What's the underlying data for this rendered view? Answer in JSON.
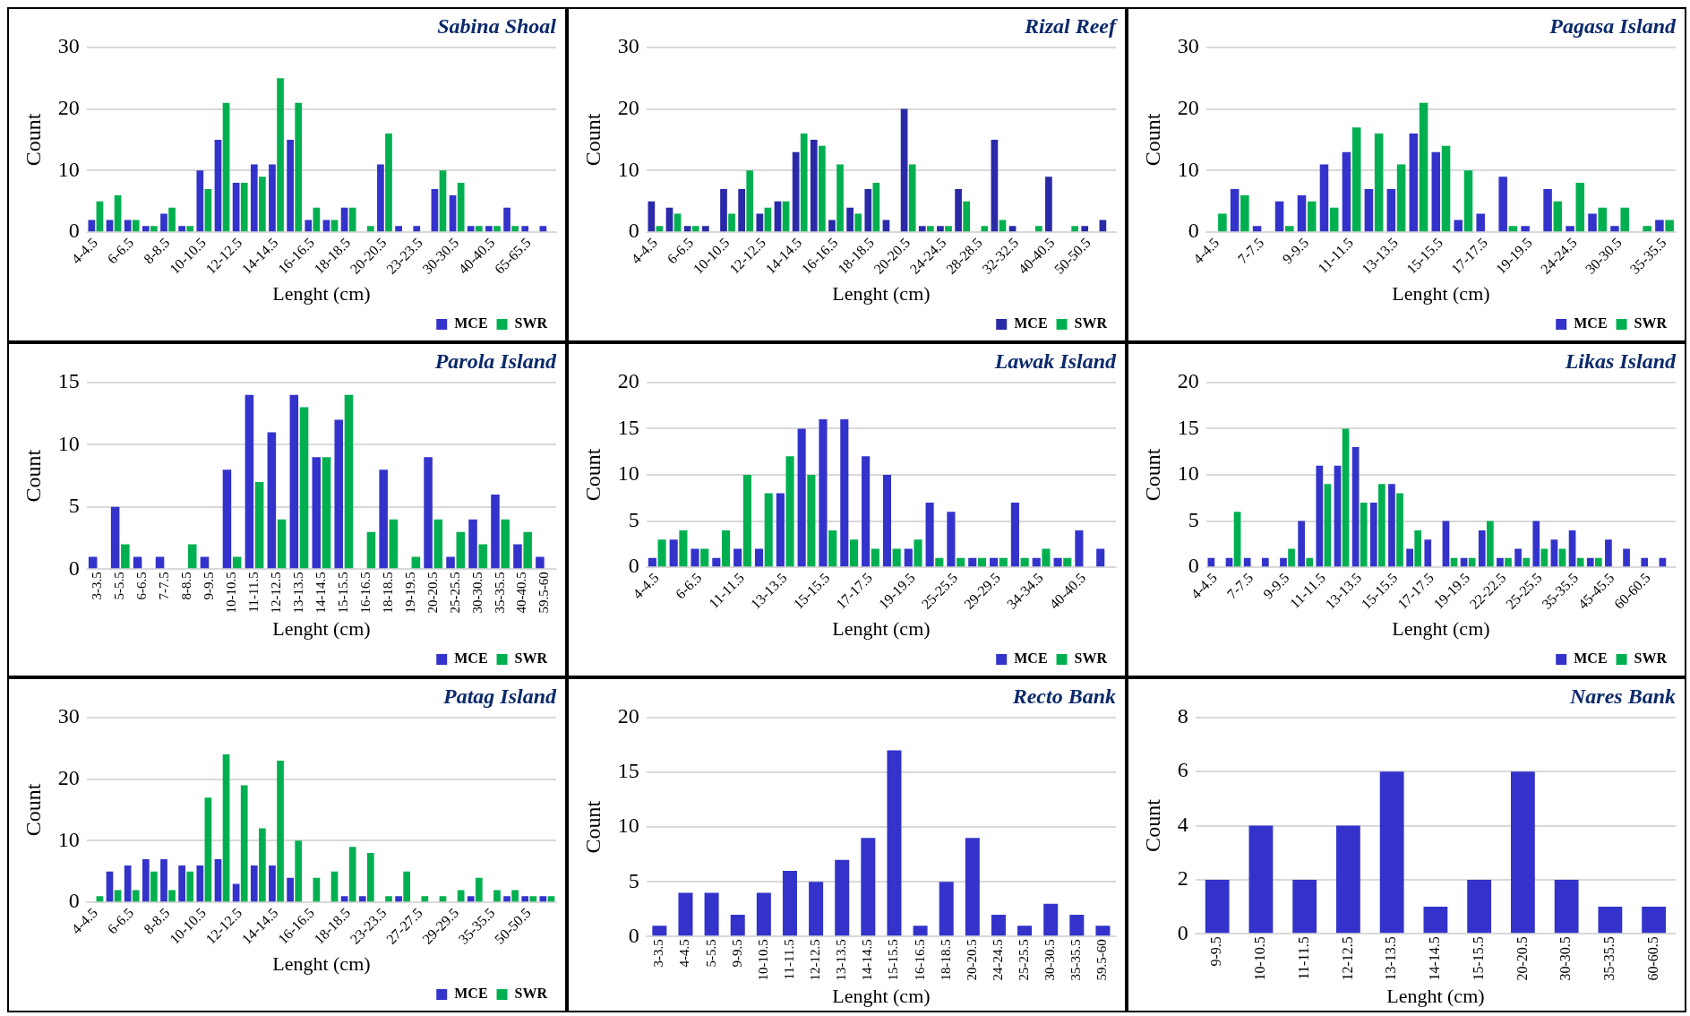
{
  "chart_data": [
    {
      "type": "bar",
      "title": "Sabina Shoal",
      "xlabel": "Lenght (cm)",
      "ylabel": "Count",
      "categories": [
        "4-4.5",
        null,
        "6-6.5",
        null,
        "8-8.5",
        null,
        "10-10.5",
        null,
        "12-12.5",
        null,
        "14-14.5",
        null,
        "16-16.5",
        null,
        "18-18.5",
        null,
        "20-20.5",
        null,
        "23-23.5",
        null,
        "30-30.5",
        null,
        "40-40.5",
        null,
        "65-65.5",
        null
      ],
      "series": [
        {
          "name": "MCE",
          "color": "#3333cc",
          "values": [
            2,
            2,
            2,
            1,
            3,
            1,
            10,
            15,
            8,
            11,
            11,
            15,
            2,
            2,
            4,
            null,
            11,
            1,
            1,
            7,
            6,
            1,
            1,
            4,
            1,
            1
          ]
        },
        {
          "name": "SWR",
          "color": "#00b050",
          "values": [
            5,
            6,
            2,
            1,
            4,
            1,
            7,
            21,
            8,
            9,
            25,
            21,
            4,
            2,
            4,
            1,
            16,
            null,
            null,
            10,
            8,
            1,
            1,
            1,
            null,
            null
          ]
        }
      ],
      "ylim": [
        0,
        30
      ],
      "yticks": [
        0,
        10,
        20,
        30
      ],
      "grid": "y",
      "legend": "bottom right"
    },
    {
      "type": "bar",
      "title": "Rizal Reef",
      "xlabel": "Lenght (cm)",
      "ylabel": "Count",
      "categories": [
        "4-4.5",
        null,
        "6-6.5",
        null,
        "10-10.5",
        null,
        "12-12.5",
        null,
        "14-14.5",
        null,
        "16-16.5",
        null,
        "18-18.5",
        null,
        "20-20.5",
        null,
        "24-24.5",
        null,
        "28-28.5",
        null,
        "32-32.5",
        null,
        "40-40.5",
        null,
        "50-50.5",
        null
      ],
      "series": [
        {
          "name": "MCE",
          "color": "#2a2aa8",
          "values": [
            5,
            4,
            1,
            1,
            7,
            7,
            3,
            5,
            13,
            15,
            2,
            4,
            7,
            2,
            20,
            1,
            1,
            7,
            null,
            15,
            1,
            null,
            9,
            null,
            1,
            2
          ]
        },
        {
          "name": "SWR",
          "color": "#00b050",
          "values": [
            1,
            3,
            1,
            null,
            3,
            10,
            4,
            5,
            16,
            14,
            11,
            3,
            8,
            null,
            11,
            1,
            1,
            5,
            1,
            2,
            null,
            1,
            null,
            1,
            null,
            null
          ]
        }
      ],
      "ylim": [
        0,
        30
      ],
      "yticks": [
        0,
        10,
        20,
        30
      ],
      "grid": "y",
      "legend": "bottom right"
    },
    {
      "type": "bar",
      "title": "Pagasa Island",
      "xlabel": "Lenght (cm)",
      "ylabel": "Count",
      "categories": [
        "4-4.5",
        null,
        "7-7.5",
        null,
        "9-9.5",
        null,
        "11-11.5",
        null,
        "13-13.5",
        null,
        "15-15.5",
        null,
        "17-17.5",
        null,
        "19-19.5",
        null,
        "24-24.5",
        null,
        "30-30.5",
        null,
        "35-35.5"
      ],
      "series": [
        {
          "name": "MCE",
          "color": "#3333cc",
          "values": [
            null,
            7,
            1,
            5,
            6,
            11,
            13,
            7,
            7,
            16,
            13,
            2,
            3,
            9,
            1,
            7,
            1,
            3,
            1,
            null,
            2
          ]
        },
        {
          "name": "SWR",
          "color": "#00b050",
          "values": [
            3,
            6,
            null,
            1,
            5,
            4,
            17,
            16,
            11,
            21,
            14,
            10,
            null,
            1,
            null,
            5,
            8,
            4,
            4,
            1,
            2
          ]
        }
      ],
      "ylim": [
        0,
        30
      ],
      "yticks": [
        0,
        10,
        20,
        30
      ],
      "grid": "y",
      "legend": "bottom right"
    },
    {
      "type": "bar",
      "title": "Parola Island",
      "xlabel": "Lenght (cm)",
      "ylabel": "Count",
      "categories": [
        "3-3.5",
        "5-5.5",
        "6-6.5",
        "7-7.5",
        "8-8.5",
        "9-9.5",
        "10-10.5",
        "11-11.5",
        "12-12.5",
        "13-13.5",
        "14-14.5",
        "15-15.5",
        "16-16.5",
        "18-18.5",
        "19-19.5",
        "20-20.5",
        "25-25.5",
        "30-30.5",
        "35-35.5",
        "40-40.5",
        "59.5-60"
      ],
      "series": [
        {
          "name": "MCE",
          "color": "#3333cc",
          "values": [
            1,
            5,
            1,
            1,
            null,
            1,
            8,
            14,
            11,
            14,
            9,
            12,
            null,
            8,
            null,
            9,
            1,
            4,
            6,
            2,
            1
          ]
        },
        {
          "name": "SWR",
          "color": "#00b050",
          "values": [
            null,
            2,
            null,
            null,
            2,
            null,
            1,
            7,
            4,
            13,
            9,
            14,
            3,
            4,
            1,
            4,
            3,
            2,
            4,
            3,
            null
          ]
        }
      ],
      "ylim": [
        0,
        15
      ],
      "yticks": [
        0,
        5,
        10,
        15
      ],
      "grid": "y",
      "legend": "bottom right"
    },
    {
      "type": "bar",
      "title": "Lawak Island",
      "xlabel": "Lenght (cm)",
      "ylabel": "Count",
      "categories": [
        "4-4.5",
        null,
        "6-6.5",
        null,
        "11-11.5",
        null,
        "13-13.5",
        null,
        "15-15.5",
        null,
        "17-17.5",
        null,
        "19-19.5",
        null,
        "25-25.5",
        null,
        "29-29.5",
        null,
        "34-34.5",
        null,
        "40-40.5",
        null
      ],
      "series": [
        {
          "name": "MCE",
          "color": "#3333cc",
          "values": [
            1,
            3,
            2,
            1,
            2,
            2,
            8,
            15,
            16,
            16,
            12,
            10,
            2,
            7,
            6,
            1,
            1,
            7,
            1,
            1,
            4,
            2
          ]
        },
        {
          "name": "SWR",
          "color": "#00b050",
          "values": [
            3,
            4,
            2,
            4,
            10,
            8,
            12,
            10,
            4,
            3,
            2,
            2,
            3,
            1,
            1,
            1,
            1,
            1,
            2,
            1,
            null,
            null
          ]
        }
      ],
      "ylim": [
        0,
        20
      ],
      "yticks": [
        0,
        5,
        10,
        15,
        20
      ],
      "grid": "y",
      "legend": "bottom right"
    },
    {
      "type": "bar",
      "title": "Likas Island",
      "xlabel": "Lenght (cm)",
      "ylabel": "Count",
      "categories": [
        "4-4.5",
        null,
        "7-7.5",
        null,
        "9-9.5",
        null,
        "11-11.5",
        null,
        "13-13.5",
        null,
        "15-15.5",
        null,
        "17-17.5",
        null,
        "19-19.5",
        null,
        "22-22.5",
        null,
        "25-25.5",
        null,
        "35-35.5",
        null,
        "45-45.5",
        null,
        "60-60.5",
        null
      ],
      "series": [
        {
          "name": "MCE",
          "color": "#3333cc",
          "values": [
            1,
            1,
            1,
            1,
            1,
            5,
            11,
            11,
            13,
            7,
            9,
            2,
            3,
            5,
            1,
            4,
            1,
            2,
            5,
            3,
            4,
            1,
            3,
            2,
            1,
            1
          ]
        },
        {
          "name": "SWR",
          "color": "#00b050",
          "values": [
            null,
            6,
            null,
            null,
            2,
            1,
            9,
            15,
            7,
            9,
            8,
            4,
            null,
            1,
            1,
            5,
            1,
            1,
            2,
            2,
            1,
            1,
            null,
            null,
            null,
            null
          ]
        }
      ],
      "ylim": [
        0,
        20
      ],
      "yticks": [
        0,
        5,
        10,
        15,
        20
      ],
      "grid": "y",
      "legend": "bottom right"
    },
    {
      "type": "bar",
      "title": "Patag Island",
      "xlabel": "Lenght (cm)",
      "ylabel": "Count",
      "categories": [
        "4-4.5",
        null,
        "6-6.5",
        null,
        "8-8.5",
        null,
        "10-10.5",
        null,
        "12-12.5",
        null,
        "14-14.5",
        null,
        "16-16.5",
        null,
        "18-18.5",
        null,
        "23-23.5",
        null,
        "27-27.5",
        null,
        "29-29.5",
        null,
        "35-35.5",
        null,
        "50-50.5",
        null
      ],
      "series": [
        {
          "name": "MCE",
          "color": "#3333cc",
          "values": [
            null,
            5,
            6,
            7,
            7,
            6,
            6,
            7,
            3,
            6,
            6,
            4,
            null,
            null,
            1,
            1,
            null,
            1,
            null,
            null,
            null,
            1,
            null,
            1,
            1,
            1
          ]
        },
        {
          "name": "SWR",
          "color": "#00b050",
          "values": [
            1,
            2,
            2,
            5,
            2,
            5,
            17,
            24,
            19,
            12,
            23,
            10,
            4,
            5,
            9,
            8,
            1,
            5,
            1,
            1,
            2,
            4,
            2,
            2,
            1,
            1
          ]
        }
      ],
      "ylim": [
        0,
        30
      ],
      "yticks": [
        0,
        10,
        20,
        30
      ],
      "grid": "y",
      "legend": "bottom right"
    },
    {
      "type": "bar",
      "title": "Recto Bank",
      "xlabel": "Lenght (cm)",
      "ylabel": "Count",
      "categories": [
        "3-3.5",
        "4-4.5",
        "5-5.5",
        "9-9.5",
        "10-10.5",
        "11-11.5",
        "12-12.5",
        "13-13.5",
        "14-14.5",
        "15-15.5",
        "16-16.5",
        "18-18.5",
        "20-20.5",
        "24-24.5",
        "25-25.5",
        "30-30.5",
        "35-35.5",
        "59.5-60"
      ],
      "series": [
        {
          "color": "#3333cc",
          "values": [
            1,
            4,
            4,
            2,
            4,
            6,
            5,
            7,
            9,
            17,
            1,
            5,
            9,
            2,
            1,
            3,
            2,
            1
          ]
        }
      ],
      "ylim": [
        0,
        20
      ],
      "yticks": [
        0,
        5,
        10,
        15,
        20
      ],
      "grid": "y"
    },
    {
      "type": "bar",
      "title": "Nares Bank",
      "xlabel": "Lenght (cm)",
      "ylabel": "Count",
      "categories": [
        "9-9.5",
        "10-10.5",
        "11-11.5",
        "12-12.5",
        "13-13.5",
        "14-14.5",
        "15-15.5",
        "20-20.5",
        "30-30.5",
        "35-35.5",
        "60-60.5"
      ],
      "series": [
        {
          "color": "#3333cc",
          "values": [
            2,
            4,
            2,
            4,
            6,
            1,
            2,
            6,
            2,
            1,
            1
          ]
        }
      ],
      "ylim": [
        0,
        8
      ],
      "yticks": [
        0,
        2,
        4,
        6,
        8
      ],
      "grid": "y"
    }
  ]
}
